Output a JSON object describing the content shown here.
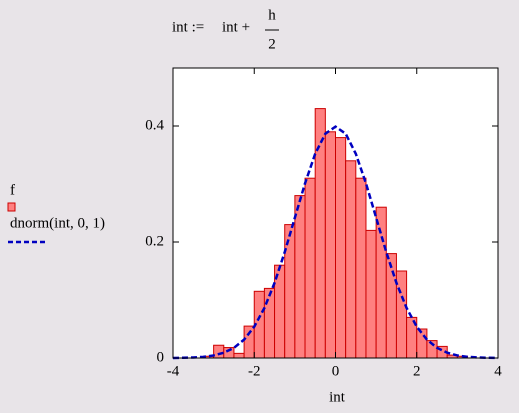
{
  "chart_data": {
    "type": "histogram",
    "formula": {
      "lhs": "int :=",
      "rhs": "int +",
      "numerator": "h",
      "denominator": "2"
    },
    "xlabel": "int",
    "name": "f",
    "color": "#ff8080",
    "edgecolor": "#cc0000",
    "bins": [
      -4,
      -3.75,
      -3.5,
      -3.25,
      -3,
      -2.75,
      -2.5,
      -2.25,
      -2,
      -1.75,
      -1.5,
      -1.25,
      -1,
      -0.75,
      -0.5,
      -0.25,
      0,
      0.25,
      0.5,
      0.75,
      1,
      1.25,
      1.5,
      1.75,
      2,
      2.25,
      2.5,
      2.75,
      3,
      3.25,
      3.5,
      3.75,
      4
    ],
    "values": [
      0,
      0,
      0,
      0.003,
      0.022,
      0.018,
      0.008,
      0.055,
      0.115,
      0.12,
      0.16,
      0.23,
      0.28,
      0.31,
      0.43,
      0.39,
      0.38,
      0.34,
      0.31,
      0.22,
      0.26,
      0.18,
      0.15,
      0.07,
      0.05,
      0.03,
      0.02,
      0.005,
      0.003,
      0,
      0,
      0
    ],
    "curve": {
      "name": "dnorm(int, 0, 1)",
      "color": "#0000c0",
      "x": [
        -4,
        -3.75,
        -3.5,
        -3.25,
        -3,
        -2.75,
        -2.5,
        -2.25,
        -2,
        -1.75,
        -1.5,
        -1.25,
        -1,
        -0.75,
        -0.5,
        -0.25,
        0,
        0.25,
        0.5,
        0.75,
        1,
        1.25,
        1.5,
        1.75,
        2,
        2.25,
        2.5,
        2.75,
        3,
        3.25,
        3.5,
        3.75,
        4
      ],
      "values": [
        0.0001,
        0.0004,
        0.0009,
        0.002,
        0.0044,
        0.0091,
        0.0175,
        0.0317,
        0.054,
        0.0863,
        0.1295,
        0.1826,
        0.242,
        0.3011,
        0.3521,
        0.3867,
        0.3989,
        0.3867,
        0.3521,
        0.3011,
        0.242,
        0.1826,
        0.1295,
        0.0863,
        0.054,
        0.0317,
        0.0175,
        0.0091,
        0.0044,
        0.002,
        0.0009,
        0.0004,
        0.0001
      ]
    },
    "xlim": [
      -4,
      4
    ],
    "xticks": [
      -4,
      -2,
      0,
      2,
      4
    ],
    "ylim": [
      0,
      0.5
    ],
    "yticks": [
      0,
      0.2,
      0.4
    ]
  }
}
